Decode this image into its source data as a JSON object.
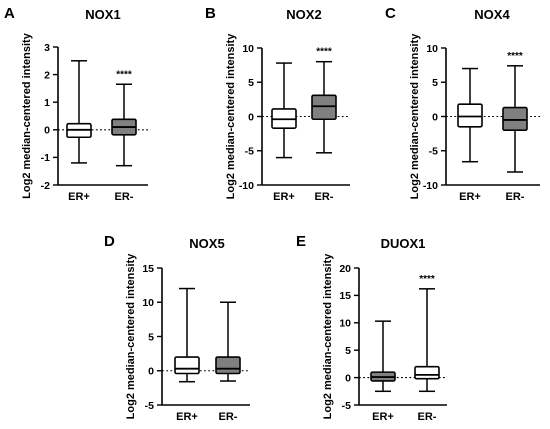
{
  "chart_data": [
    {
      "panel": "A",
      "type": "box",
      "title": "NOX1",
      "ylabel": "Log2 median-centered intensity",
      "ylim": [
        -2,
        3
      ],
      "yticks": [
        -2,
        -1,
        0,
        1,
        2,
        3
      ],
      "reference_line": 0,
      "categories": [
        "ER+",
        "ER-"
      ],
      "boxes": [
        {
          "category": "ER+",
          "min": -1.2,
          "q1": -0.27,
          "median": 0.0,
          "q3": 0.22,
          "max": 2.5,
          "fill": "#ffffff"
        },
        {
          "category": "ER-",
          "min": -1.3,
          "q1": -0.18,
          "median": 0.1,
          "q3": 0.38,
          "max": 1.65,
          "fill": "#808080"
        }
      ],
      "significance": [
        {
          "category": "ER-",
          "label": "****"
        }
      ]
    },
    {
      "panel": "B",
      "type": "box",
      "title": "NOX2",
      "ylabel": "Log2 median-centered intensity",
      "ylim": [
        -10,
        10
      ],
      "yticks": [
        -10,
        -5,
        0,
        5,
        10
      ],
      "reference_line": 0,
      "categories": [
        "ER+",
        "ER-"
      ],
      "boxes": [
        {
          "category": "ER+",
          "min": -6.0,
          "q1": -1.7,
          "median": -0.4,
          "q3": 1.1,
          "max": 7.8,
          "fill": "#ffffff"
        },
        {
          "category": "ER-",
          "min": -5.3,
          "q1": -0.4,
          "median": 1.5,
          "q3": 3.1,
          "max": 8.0,
          "fill": "#808080"
        }
      ],
      "significance": [
        {
          "category": "ER-",
          "label": "****"
        }
      ]
    },
    {
      "panel": "C",
      "type": "box",
      "title": "NOX4",
      "ylabel": "Log2 median-centered intensity",
      "ylim": [
        -10,
        10
      ],
      "yticks": [
        -10,
        -5,
        0,
        5,
        10
      ],
      "reference_line": 0,
      "categories": [
        "ER+",
        "ER-"
      ],
      "boxes": [
        {
          "category": "ER+",
          "min": -6.6,
          "q1": -1.5,
          "median": 0.0,
          "q3": 1.8,
          "max": 7.0,
          "fill": "#ffffff"
        },
        {
          "category": "ER-",
          "min": -8.1,
          "q1": -2.0,
          "median": -0.5,
          "q3": 1.3,
          "max": 7.4,
          "fill": "#808080"
        }
      ],
      "significance": [
        {
          "category": "ER-",
          "label": "****"
        }
      ]
    },
    {
      "panel": "D",
      "type": "box",
      "title": "NOX5",
      "ylabel": "Log2 median-centered intensity",
      "ylim": [
        -5,
        15
      ],
      "yticks": [
        -5,
        0,
        5,
        10,
        15
      ],
      "reference_line": 0,
      "categories": [
        "ER+",
        "ER-"
      ],
      "boxes": [
        {
          "category": "ER+",
          "min": -1.6,
          "q1": -0.4,
          "median": 0.3,
          "q3": 2.0,
          "max": 12.0,
          "fill": "#ffffff"
        },
        {
          "category": "ER-",
          "min": -1.5,
          "q1": -0.4,
          "median": 0.3,
          "q3": 2.0,
          "max": 10.0,
          "fill": "#808080"
        }
      ],
      "significance": []
    },
    {
      "panel": "E",
      "type": "box",
      "title": "DUOX1",
      "ylabel": "Log2 median-centered intensity",
      "ylim": [
        -5,
        20
      ],
      "yticks": [
        -5,
        0,
        5,
        10,
        15,
        20
      ],
      "reference_line": 0,
      "categories": [
        "ER+",
        "ER-"
      ],
      "boxes": [
        {
          "category": "ER+",
          "min": -2.5,
          "q1": -0.6,
          "median": 0.1,
          "q3": 1.0,
          "max": 10.3,
          "fill": "#808080"
        },
        {
          "category": "ER-",
          "min": -2.5,
          "q1": -0.2,
          "median": 0.5,
          "q3": 2.0,
          "max": 16.2,
          "fill": "#ffffff"
        }
      ],
      "significance": [
        {
          "category": "ER-",
          "label": "****"
        }
      ]
    }
  ]
}
